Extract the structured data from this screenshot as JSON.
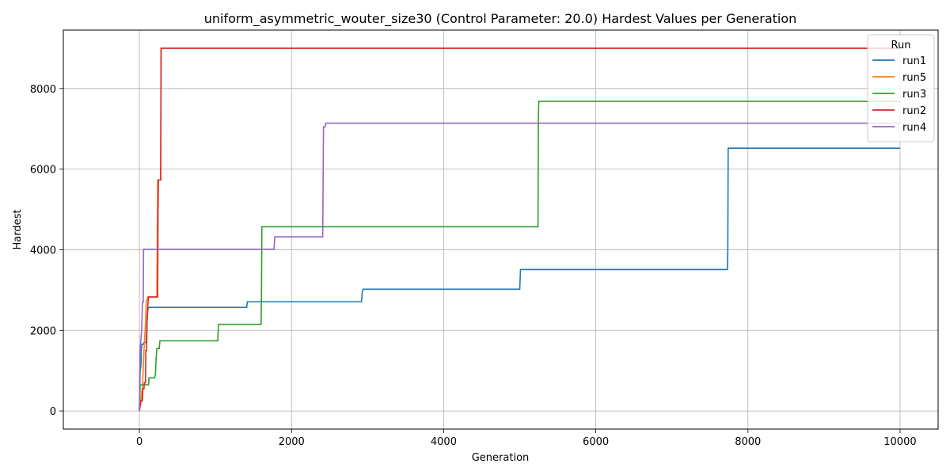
{
  "chart_data": {
    "type": "line",
    "title": "uniform_asymmetric_wouter_size30 (Control Parameter: 20.0) Hardest Values per Generation",
    "xlabel": "Generation",
    "ylabel": "Hardest",
    "xlim": [
      -1000,
      10500
    ],
    "ylim": [
      -450,
      9450
    ],
    "xticks": [
      0,
      2000,
      4000,
      6000,
      8000,
      10000
    ],
    "yticks": [
      0,
      2000,
      4000,
      6000,
      8000
    ],
    "grid": true,
    "legend": {
      "title": "Run",
      "placement": "top-right"
    },
    "series": [
      {
        "name": "run1",
        "color": "#1f77b4",
        "points": [
          [
            0,
            0
          ],
          [
            5,
            600
          ],
          [
            10,
            1000
          ],
          [
            15,
            1050
          ],
          [
            20,
            1100
          ],
          [
            25,
            1500
          ],
          [
            30,
            1650
          ],
          [
            50,
            1650
          ],
          [
            60,
            1700
          ],
          [
            90,
            1700
          ],
          [
            100,
            2200
          ],
          [
            110,
            2500
          ],
          [
            120,
            2570
          ],
          [
            1410,
            2570
          ],
          [
            1420,
            2710
          ],
          [
            2920,
            2710
          ],
          [
            2930,
            2950
          ],
          [
            2940,
            3020
          ],
          [
            5000,
            3020
          ],
          [
            5010,
            3510
          ],
          [
            7730,
            3510
          ],
          [
            7735,
            4000
          ],
          [
            7740,
            6520
          ],
          [
            10000,
            6520
          ]
        ]
      },
      {
        "name": "run5",
        "color": "#ff7f0e",
        "points": [
          [
            0,
            0
          ],
          [
            20,
            250
          ],
          [
            40,
            600
          ],
          [
            60,
            1500
          ],
          [
            80,
            2200
          ],
          [
            90,
            2700
          ],
          [
            110,
            2830
          ],
          [
            230,
            2830
          ],
          [
            240,
            5730
          ],
          [
            280,
            5730
          ],
          [
            285,
            9000
          ],
          [
            10000,
            9000
          ]
        ]
      },
      {
        "name": "run3",
        "color": "#2ca02c",
        "points": [
          [
            0,
            0
          ],
          [
            5,
            300
          ],
          [
            10,
            650
          ],
          [
            120,
            650
          ],
          [
            125,
            820
          ],
          [
            200,
            820
          ],
          [
            210,
            900
          ],
          [
            220,
            1300
          ],
          [
            230,
            1550
          ],
          [
            260,
            1550
          ],
          [
            270,
            1740
          ],
          [
            1030,
            1740
          ],
          [
            1040,
            2150
          ],
          [
            1600,
            2150
          ],
          [
            1605,
            3000
          ],
          [
            1610,
            4570
          ],
          [
            5240,
            4570
          ],
          [
            5245,
            7300
          ],
          [
            5250,
            7680
          ],
          [
            10000,
            7680
          ]
        ]
      },
      {
        "name": "run2",
        "color": "#d62728",
        "points": [
          [
            0,
            0
          ],
          [
            20,
            250
          ],
          [
            40,
            250
          ],
          [
            45,
            550
          ],
          [
            60,
            550
          ],
          [
            65,
            700
          ],
          [
            80,
            700
          ],
          [
            85,
            1500
          ],
          [
            95,
            1500
          ],
          [
            100,
            2200
          ],
          [
            110,
            2600
          ],
          [
            120,
            2830
          ],
          [
            240,
            2830
          ],
          [
            245,
            5000
          ],
          [
            250,
            5730
          ],
          [
            280,
            5730
          ],
          [
            285,
            9000
          ],
          [
            10000,
            9000
          ]
        ]
      },
      {
        "name": "run4",
        "color": "#9467bd",
        "points": [
          [
            0,
            0
          ],
          [
            5,
            900
          ],
          [
            10,
            1500
          ],
          [
            20,
            1800
          ],
          [
            30,
            2000
          ],
          [
            40,
            2700
          ],
          [
            50,
            2700
          ],
          [
            55,
            4010
          ],
          [
            1770,
            4010
          ],
          [
            1780,
            4320
          ],
          [
            2410,
            4320
          ],
          [
            2420,
            7050
          ],
          [
            2440,
            7050
          ],
          [
            2450,
            7140
          ],
          [
            10000,
            7140
          ]
        ]
      }
    ]
  }
}
